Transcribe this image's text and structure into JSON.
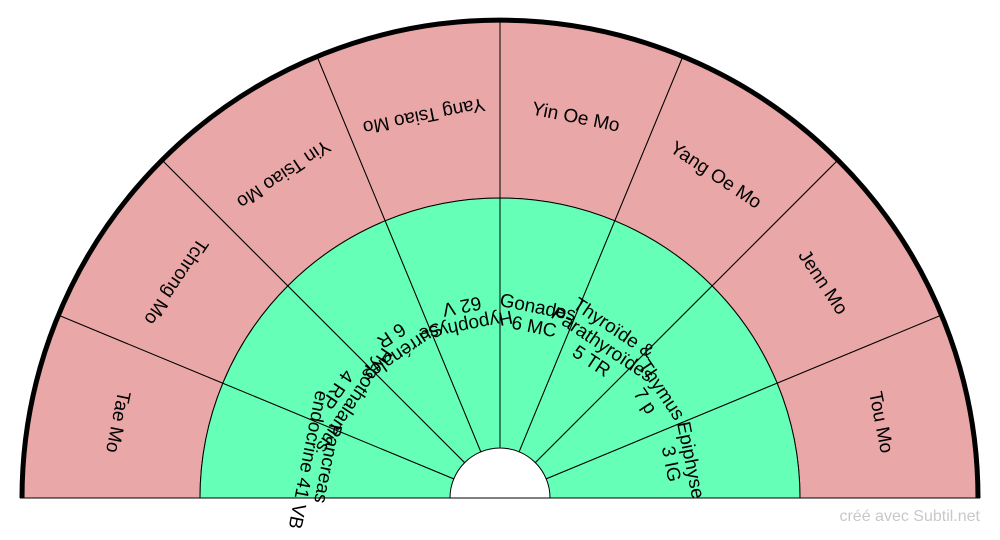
{
  "colors": {
    "outer_ring": "#eaa7a7",
    "inner_ring": "#66ffb8",
    "outline": "#000000",
    "credit_text": "#c8c8c8"
  },
  "outer_ring": [
    {
      "lines": [
        "Tae Mo"
      ]
    },
    {
      "lines": [
        "Tchrong Mo"
      ]
    },
    {
      "lines": [
        "Yin Tsiao Mo"
      ]
    },
    {
      "lines": [
        "Yang Tsiao Mo"
      ]
    },
    {
      "lines": [
        "Yin Oe Mo"
      ]
    },
    {
      "lines": [
        "Yang Oe Mo"
      ]
    },
    {
      "lines": [
        "Jenn Mo"
      ]
    },
    {
      "lines": [
        "Tou Mo"
      ]
    }
  ],
  "inner_ring": [
    {
      "lines": [
        "Pancreas",
        "endocrine 41 VB"
      ]
    },
    {
      "lines": [
        "Hypothalamus",
        "4 RP"
      ]
    },
    {
      "lines": [
        "Surrénales",
        "6 R"
      ]
    },
    {
      "lines": [
        "Hypophyse",
        "62 V"
      ]
    },
    {
      "lines": [
        "Gonades",
        "6 MC"
      ]
    },
    {
      "lines": [
        "Thyroïde &",
        "Parathyroïdes",
        "5 TR"
      ]
    },
    {
      "lines": [
        "Thymus",
        "7 p"
      ]
    },
    {
      "lines": [
        "Epiphyse",
        "3 IG"
      ]
    }
  ],
  "credit": "créé avec Subtil.net"
}
